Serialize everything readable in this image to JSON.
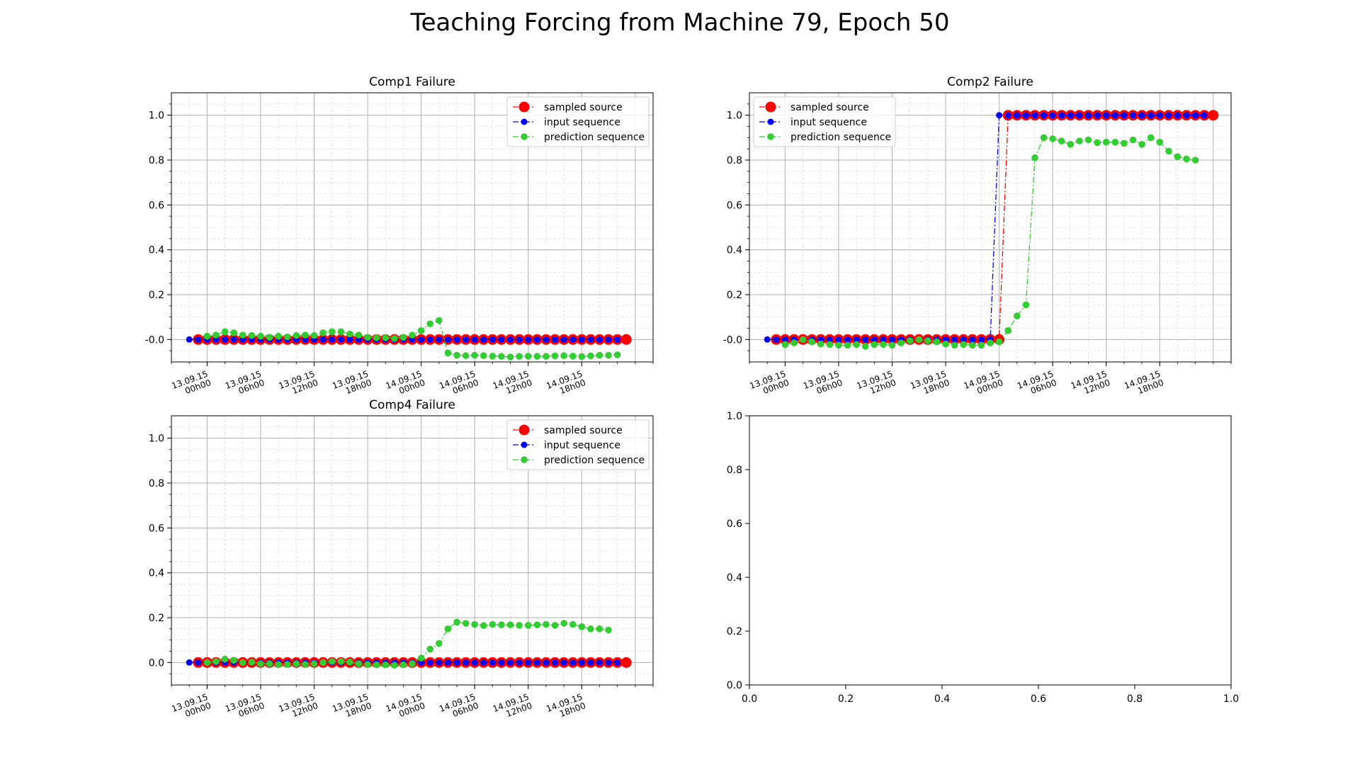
{
  "title": "Teaching Forcing from Machine 79, Epoch 50",
  "colors": {
    "sampled_source": "#ff0000",
    "input_sequence": "#0000ff",
    "prediction_sequence": "#32cd32",
    "grid_major": "#b0b0b0",
    "grid_minor": "#dddddd"
  },
  "chart_data": [
    {
      "type": "line",
      "title": "Comp1 Failure",
      "xlabel": "",
      "ylabel": "",
      "ylim": [
        -0.1,
        1.1
      ],
      "xlim": [
        "2015-09-12T20:00",
        "2015-09-15T02:00"
      ],
      "yticks": [
        "-0.0",
        "0.2",
        "0.4",
        "0.6",
        "0.8",
        "1.0"
      ],
      "xticks": [
        {
          "t": "2015-09-13T00:00",
          "line1": "13.09.15",
          "line2": "00h00"
        },
        {
          "t": "2015-09-13T06:00",
          "line1": "13.09.15",
          "line2": "06h00"
        },
        {
          "t": "2015-09-13T12:00",
          "line1": "13.09.15",
          "line2": "12h00"
        },
        {
          "t": "2015-09-13T18:00",
          "line1": "13.09.15",
          "line2": "18h00"
        },
        {
          "t": "2015-09-14T00:00",
          "line1": "14.09.15",
          "line2": "00h00"
        },
        {
          "t": "2015-09-14T06:00",
          "line1": "14.09.15",
          "line2": "06h00"
        },
        {
          "t": "2015-09-14T12:00",
          "line1": "14.09.15",
          "line2": "12h00"
        },
        {
          "t": "2015-09-14T18:00",
          "line1": "14.09.15",
          "line2": "18h00"
        }
      ],
      "grid": true,
      "legend": "top-right",
      "series": [
        {
          "name": "sampled source",
          "start": "2015-09-12T23:00",
          "step_hours": 1,
          "values": [
            0,
            0,
            0,
            0,
            0,
            0,
            0,
            0,
            0,
            0,
            0,
            0,
            0,
            0,
            0,
            0,
            0,
            0,
            0,
            0,
            0,
            0,
            0,
            0,
            0,
            0,
            0,
            0,
            0,
            0,
            0,
            0,
            0,
            0,
            0,
            0,
            0,
            0,
            0,
            0,
            0,
            0,
            0,
            0,
            0,
            0,
            0,
            0,
            0
          ]
        },
        {
          "name": "input sequence",
          "start": "2015-09-12T22:00",
          "step_hours": 1,
          "values": [
            0,
            0,
            0,
            0,
            0,
            0,
            0,
            0,
            0,
            0,
            0,
            0,
            0,
            0,
            0,
            0,
            0,
            0,
            0,
            0,
            0,
            0,
            0,
            0,
            0,
            0,
            0,
            0,
            0,
            0,
            0,
            0,
            0,
            0,
            0,
            0,
            0,
            0,
            0,
            0,
            0,
            0,
            0,
            0,
            0,
            0,
            0,
            0,
            0
          ]
        },
        {
          "name": "prediction sequence",
          "start": "2015-09-13T00:00",
          "step_hours": 1,
          "values": [
            0.015,
            0.02,
            0.035,
            0.03,
            0.02,
            0.018,
            0.015,
            0.01,
            0.015,
            0.012,
            0.018,
            0.02,
            0.018,
            0.03,
            0.035,
            0.035,
            0.025,
            0.02,
            0.01,
            0.008,
            0.008,
            0.005,
            0.01,
            0.02,
            0.04,
            0.07,
            0.085,
            -0.06,
            -0.07,
            -0.072,
            -0.07,
            -0.072,
            -0.074,
            -0.075,
            -0.078,
            -0.075,
            -0.074,
            -0.075,
            -0.075,
            -0.073,
            -0.072,
            -0.074,
            -0.076,
            -0.073,
            -0.07,
            -0.07,
            -0.068
          ]
        }
      ]
    },
    {
      "type": "line",
      "title": "Comp2 Failure",
      "xlabel": "",
      "ylabel": "",
      "ylim": [
        -0.1,
        1.1
      ],
      "xlim": [
        "2015-09-12T20:00",
        "2015-09-15T02:00"
      ],
      "yticks": [
        "-0.0",
        "0.2",
        "0.4",
        "0.6",
        "0.8",
        "1.0"
      ],
      "xticks": [
        {
          "t": "2015-09-13T00:00",
          "line1": "13.09.15",
          "line2": "00h00"
        },
        {
          "t": "2015-09-13T06:00",
          "line1": "13.09.15",
          "line2": "06h00"
        },
        {
          "t": "2015-09-13T12:00",
          "line1": "13.09.15",
          "line2": "12h00"
        },
        {
          "t": "2015-09-13T18:00",
          "line1": "13.09.15",
          "line2": "18h00"
        },
        {
          "t": "2015-09-14T00:00",
          "line1": "14.09.15",
          "line2": "00h00"
        },
        {
          "t": "2015-09-14T06:00",
          "line1": "14.09.15",
          "line2": "06h00"
        },
        {
          "t": "2015-09-14T12:00",
          "line1": "14.09.15",
          "line2": "12h00"
        },
        {
          "t": "2015-09-14T18:00",
          "line1": "14.09.15",
          "line2": "18h00"
        }
      ],
      "grid": true,
      "legend": "top-left",
      "series": [
        {
          "name": "sampled source",
          "start": "2015-09-12T23:00",
          "step_hours": 1,
          "values": [
            0,
            0,
            0,
            0,
            0,
            0,
            0,
            0,
            0,
            0,
            0,
            0,
            0,
            0,
            0,
            0,
            0,
            0,
            0,
            0,
            0,
            0,
            0,
            0,
            0,
            0,
            1,
            1,
            1,
            1,
            1,
            1,
            1,
            1,
            1,
            1,
            1,
            1,
            1,
            1,
            1,
            1,
            1,
            1,
            1,
            1,
            1,
            1,
            1,
            1
          ]
        },
        {
          "name": "input sequence",
          "start": "2015-09-12T22:00",
          "step_hours": 1,
          "values": [
            0,
            0,
            0,
            0,
            0,
            0,
            0,
            0,
            0,
            0,
            0,
            0,
            0,
            0,
            0,
            0,
            0,
            0,
            0,
            0,
            0,
            0,
            0,
            0,
            0,
            0,
            1,
            1,
            1,
            1,
            1,
            1,
            1,
            1,
            1,
            1,
            1,
            1,
            1,
            1,
            1,
            1,
            1,
            1,
            1,
            1,
            1,
            1,
            1,
            1
          ]
        },
        {
          "name": "prediction sequence",
          "start": "2015-09-13T00:00",
          "step_hours": 1,
          "values": [
            -0.022,
            -0.015,
            0,
            -0.01,
            -0.02,
            -0.022,
            -0.025,
            -0.025,
            -0.022,
            -0.03,
            -0.022,
            -0.022,
            -0.025,
            -0.015,
            -0.005,
            0,
            -0.005,
            -0.01,
            -0.02,
            -0.025,
            -0.022,
            -0.025,
            -0.025,
            -0.015,
            -0.01,
            0.04,
            0.105,
            0.155,
            0.81,
            0.9,
            0.895,
            0.885,
            0.87,
            0.885,
            0.89,
            0.878,
            0.88,
            0.88,
            0.875,
            0.89,
            0.87,
            0.9,
            0.88,
            0.84,
            0.815,
            0.805,
            0.8
          ]
        }
      ]
    },
    {
      "type": "line",
      "title": "Comp4 Failure",
      "xlabel": "",
      "ylabel": "",
      "ylim": [
        -0.1,
        1.1
      ],
      "xlim": [
        "2015-09-12T20:00",
        "2015-09-15T02:00"
      ],
      "yticks": [
        "0.0",
        "0.2",
        "0.4",
        "0.6",
        "0.8",
        "1.0"
      ],
      "xticks": [
        {
          "t": "2015-09-13T00:00",
          "line1": "13.09.15",
          "line2": "00h00"
        },
        {
          "t": "2015-09-13T06:00",
          "line1": "13.09.15",
          "line2": "06h00"
        },
        {
          "t": "2015-09-13T12:00",
          "line1": "13.09.15",
          "line2": "12h00"
        },
        {
          "t": "2015-09-13T18:00",
          "line1": "13.09.15",
          "line2": "18h00"
        },
        {
          "t": "2015-09-14T00:00",
          "line1": "14.09.15",
          "line2": "00h00"
        },
        {
          "t": "2015-09-14T06:00",
          "line1": "14.09.15",
          "line2": "06h00"
        },
        {
          "t": "2015-09-14T12:00",
          "line1": "14.09.15",
          "line2": "12h00"
        },
        {
          "t": "2015-09-14T18:00",
          "line1": "14.09.15",
          "line2": "18h00"
        }
      ],
      "grid": true,
      "legend": "top-right",
      "series": [
        {
          "name": "sampled source",
          "start": "2015-09-12T23:00",
          "step_hours": 1,
          "values": [
            0,
            0,
            0,
            0,
            0,
            0,
            0,
            0,
            0,
            0,
            0,
            0,
            0,
            0,
            0,
            0,
            0,
            0,
            0,
            0,
            0,
            0,
            0,
            0,
            0,
            0,
            0,
            0,
            0,
            0,
            0,
            0,
            0,
            0,
            0,
            0,
            0,
            0,
            0,
            0,
            0,
            0,
            0,
            0,
            0,
            0,
            0,
            0,
            0
          ]
        },
        {
          "name": "input sequence",
          "start": "2015-09-12T22:00",
          "step_hours": 1,
          "values": [
            0,
            0,
            0,
            0,
            0,
            0,
            0,
            0,
            0,
            0,
            0,
            0,
            0,
            0,
            0,
            0,
            0,
            0,
            0,
            0,
            0,
            0,
            0,
            0,
            0,
            0,
            0,
            0,
            0,
            0,
            0,
            0,
            0,
            0,
            0,
            0,
            0,
            0,
            0,
            0,
            0,
            0,
            0,
            0,
            0,
            0,
            0,
            0,
            0
          ]
        },
        {
          "name": "prediction sequence",
          "start": "2015-09-13T00:00",
          "step_hours": 1,
          "values": [
            0,
            0.005,
            0.015,
            0.01,
            0,
            0.002,
            -0.005,
            -0.005,
            -0.008,
            -0.008,
            -0.005,
            -0.008,
            -0.005,
            0,
            0.005,
            0.005,
            0.002,
            -0.005,
            -0.008,
            -0.01,
            -0.01,
            -0.012,
            -0.01,
            -0.005,
            0.02,
            0.06,
            0.085,
            0.15,
            0.18,
            0.175,
            0.17,
            0.165,
            0.17,
            0.168,
            0.168,
            0.166,
            0.166,
            0.168,
            0.17,
            0.166,
            0.175,
            0.17,
            0.16,
            0.15,
            0.15,
            0.145
          ]
        }
      ]
    },
    {
      "type": "line",
      "title": "",
      "xlabel": "",
      "ylabel": "",
      "xlim": [
        0,
        1
      ],
      "ylim": [
        0,
        1
      ],
      "xticks_numeric": [
        "0.0",
        "0.2",
        "0.4",
        "0.6",
        "0.8",
        "1.0"
      ],
      "yticks": [
        "0.0",
        "0.2",
        "0.4",
        "0.6",
        "0.8",
        "1.0"
      ],
      "grid": false,
      "series": []
    }
  ]
}
